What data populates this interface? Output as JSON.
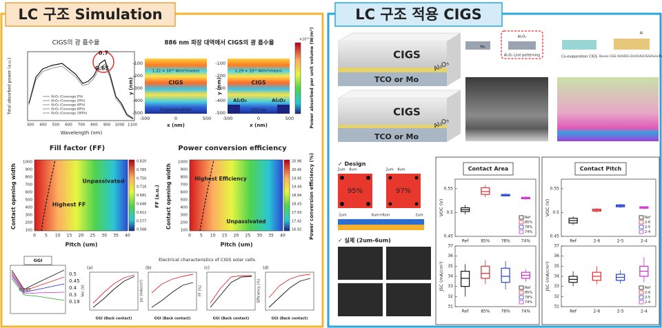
{
  "left": {
    "title": "LC 구조 Simulation",
    "absorption": {
      "title": "CIGS의 광 흡수율",
      "ylabel": "Total absorbed power (a.u.)",
      "xlabel": "Wavelength (nm)",
      "xticks": [
        "300",
        "400",
        "500",
        "600",
        "700",
        "800",
        "900",
        "1000",
        "1100"
      ],
      "peak_labels": [
        "0.7",
        "0.65"
      ],
      "legend": [
        "Al₂O₃ (Coverage 0%)",
        "Al₂O₃ (Coverage 20%)",
        "Al₂O₃ (Coverage 40%)",
        "Al₂O₃ (Coverage 60%)",
        "Al₂O₃ (Coverage 100%)"
      ]
    },
    "profile": {
      "title": "886 nm 파장 대역에서 CIGS의 광 흡수율",
      "left_mean": "1.22 × 10¹² W/m³(mean)",
      "right_mean": "1.29 × 10¹² W/m³(mean)",
      "layer": "CIGS",
      "unpassivation": "Unpassivation",
      "oxide": "Al₂O₃",
      "gap": "200 nm",
      "ylabel": "y (nm)",
      "xlabel": "x (nm)",
      "yticks": [
        "-100",
        "-200",
        "-300",
        "-400",
        "-500"
      ],
      "xticks": [
        "-500",
        "0",
        "500"
      ],
      "cbar_exp": "×10¹⁴",
      "cbar_label": "Power absorbed per unit volume (W/m³)"
    },
    "ff": {
      "title": "Fill factor (FF)",
      "ylabel": "Contact opening width",
      "xlabel": "Pitch (um)",
      "yticks": [
        "1000",
        "900",
        "800",
        "700",
        "600",
        "500",
        "400",
        "300",
        "200",
        "100"
      ],
      "xticks": [
        "0",
        "5",
        "10",
        "15",
        "20",
        "25",
        "30",
        "35",
        "40"
      ],
      "cbar_ticks": [
        "0.820",
        "0.785",
        "0.750",
        "0.716",
        "0.681",
        "0.646",
        "0.612",
        "0.577",
        "0.568"
      ],
      "cbar_label": "FF (a.u.)",
      "best": "Highest FF",
      "unpassivated": "Unpassivated"
    },
    "pce": {
      "title": "Power conversion efficiency",
      "ylabel": "Contact opening width",
      "xlabel": "Pitch (um)",
      "yticks": [
        "1000",
        "900",
        "800",
        "700",
        "600",
        "500",
        "400",
        "300",
        "200",
        "100"
      ],
      "xticks": [
        "0",
        "5",
        "10",
        "15",
        "20",
        "25",
        "30",
        "35",
        "40"
      ],
      "cbar_ticks": [
        "20.96",
        "20.45",
        "19.95",
        "19.44",
        "18.94",
        "18.43",
        "17.93",
        "17.42",
        "16.92"
      ],
      "cbar_label": "Power conversion efficiency (%)",
      "best": "Highest Efficiency",
      "unpassivated": "Unpassivated"
    },
    "ggi": {
      "title": "GGI",
      "labels": [
        "0.5",
        "0.45",
        "0.4",
        "0.3",
        "0.19"
      ],
      "marker": "0.345"
    },
    "electrical": {
      "title": "Electrical characteristics of CIGS solar cells",
      "panels": [
        {
          "tag": "(a)",
          "ylabel": "Voc (V)",
          "xlabel": "GGI (Back contact)"
        },
        {
          "tag": "(b)",
          "ylabel": "Jsc (mA/cm²)",
          "xlabel": "GGI (Back contact)"
        },
        {
          "tag": "(c)",
          "ylabel": "FF (%)",
          "xlabel": "GGI (Back contact)"
        },
        {
          "tag": "(d)",
          "ylabel": "Efficiency (%)",
          "xlabel": "GGI (Back contact)"
        }
      ]
    }
  },
  "right": {
    "title": "LC 구조 적용 CIGS",
    "schematic": {
      "absorber": "CIGS",
      "oxide": "Al₂O₃",
      "contact": "TCO or Mo"
    },
    "process": [
      "Mo",
      "Al₂O₃",
      "Al₂O₃ Line patterning",
      "Co-evaporation CIGS",
      "Device CIGS (Al/AZO/i-ZnO/CdS/CIGS/Al₂O₃/Mo)",
      "Al"
    ],
    "design": {
      "title": "✓ Design",
      "dims": [
        "2um",
        "8um"
      ],
      "coverage": [
        "95%",
        "97%"
      ],
      "section": [
        "2um",
        "6um+8um",
        "2um"
      ],
      "real": "✓ 실제 (2um-6um)"
    },
    "colors": [
      "#111111",
      "#e52b2b",
      "#1f3fd6",
      "#d22ad2"
    ],
    "contact_area": {
      "title": "Contact Area",
      "categories": [
        "Ref",
        "85%",
        "78%",
        "74%"
      ],
      "voc": {
        "ylabel": "VOC (V)",
        "ylim": [
          0.45,
          0.57
        ],
        "yticks": [
          0.45,
          0.5,
          0.55
        ],
        "boxes": [
          [
            0.496,
            0.502,
            0.506,
            0.51,
            0.516
          ],
          [
            0.532,
            0.538,
            0.544,
            0.552,
            0.558
          ],
          [
            0.534,
            0.535,
            0.536,
            0.538,
            0.54
          ],
          [
            0.527,
            0.529,
            0.53,
            0.532,
            0.534
          ]
        ]
      },
      "jsc": {
        "ylabel": "JSC (mA/cm²)",
        "ylim": [
          31,
          37
        ],
        "yticks": [
          31,
          32,
          33,
          34,
          35,
          36,
          37
        ],
        "boxes": [
          [
            32,
            33,
            33.8,
            34.5,
            35.2
          ],
          [
            33.2,
            33.8,
            34.3,
            35,
            35.6
          ],
          [
            32.7,
            33.4,
            34,
            34.8,
            35.5
          ],
          [
            33.5,
            33.8,
            34.1,
            34.4,
            34.7
          ]
        ]
      }
    },
    "contact_pitch": {
      "title": "Contact Pitch",
      "categories": [
        "Ref",
        "2-6",
        "2-5",
        "2-4"
      ],
      "voc": {
        "ylabel": "VOC (V)",
        "ylim": [
          0.45,
          0.57
        ],
        "yticks": [
          0.45,
          0.5,
          0.55
        ],
        "boxes": [
          [
            0.474,
            0.478,
            0.483,
            0.488,
            0.492
          ],
          [
            0.5,
            0.503,
            0.505,
            0.507,
            0.509
          ],
          [
            0.51,
            0.512,
            0.514,
            0.516,
            0.518
          ],
          [
            0.507,
            0.509,
            0.511,
            0.512,
            0.513
          ]
        ]
      },
      "jsc": {
        "ylabel": "JSC (mA/cm²)",
        "ylim": [
          31,
          37
        ],
        "yticks": [
          31,
          32,
          33,
          34,
          35,
          36,
          37
        ],
        "boxes": [
          [
            33,
            33.4,
            33.7,
            34,
            34.5
          ],
          [
            33.2,
            33.6,
            34,
            34.4,
            35
          ],
          [
            33.3,
            33.6,
            33.9,
            34.2,
            34.6
          ],
          [
            33.4,
            34,
            34.5,
            35,
            35.9
          ]
        ]
      }
    }
  }
}
